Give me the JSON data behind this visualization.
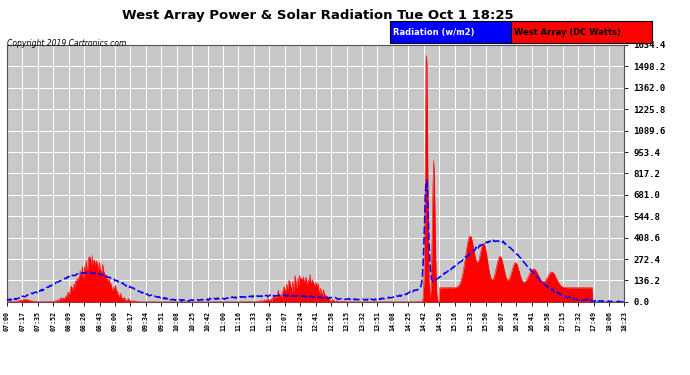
{
  "title": "West Array Power & Solar Radiation Tue Oct 1 18:25",
  "copyright": "Copyright 2019 Cartronics.com",
  "legend_rad": "Radiation (w/m2)",
  "legend_west": "West Array (DC Watts)",
  "y_ticks": [
    0.0,
    136.2,
    272.4,
    408.6,
    544.8,
    681.0,
    817.2,
    953.4,
    1089.6,
    1225.8,
    1362.0,
    1498.2,
    1634.4
  ],
  "ymax": 1634.4,
  "fig_bg": "#ffffff",
  "plot_bg": "#c8c8c8",
  "grid_color": "#ffffff",
  "x_labels": [
    "07:00",
    "07:17",
    "07:35",
    "07:52",
    "08:09",
    "08:26",
    "08:43",
    "09:00",
    "09:17",
    "09:34",
    "09:51",
    "10:08",
    "10:25",
    "10:42",
    "11:00",
    "11:16",
    "11:33",
    "11:50",
    "12:07",
    "12:24",
    "12:41",
    "12:58",
    "13:15",
    "13:32",
    "13:51",
    "14:08",
    "14:25",
    "14:42",
    "14:59",
    "15:16",
    "15:33",
    "15:50",
    "16:07",
    "16:24",
    "16:41",
    "16:58",
    "17:15",
    "17:32",
    "17:49",
    "18:06",
    "18:23"
  ]
}
